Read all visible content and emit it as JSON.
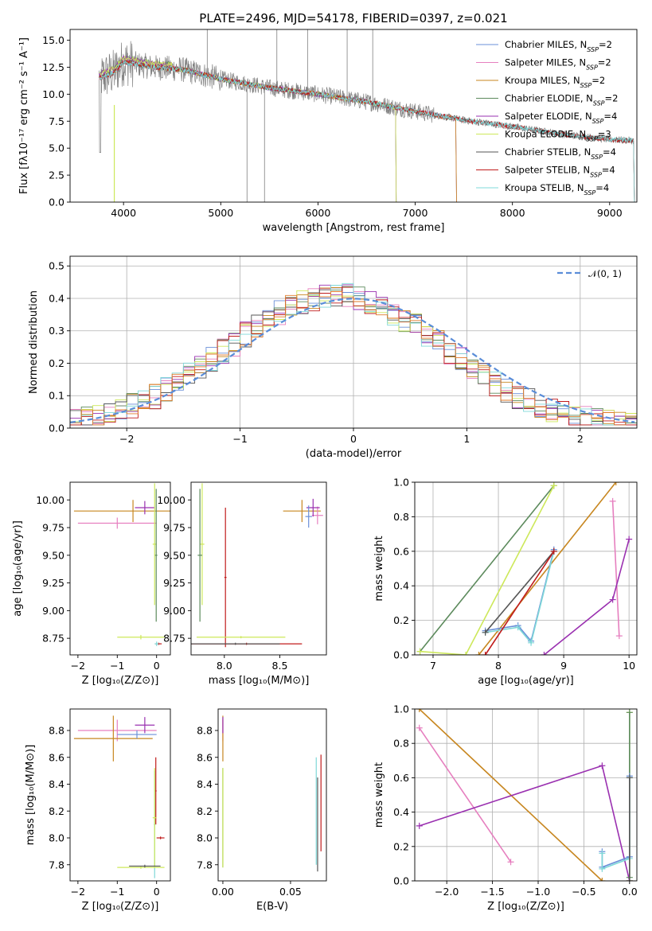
{
  "colors": {
    "Chabrier MILES": "#6a8fd8",
    "Salpeter MILES": "#e67fbf",
    "Kroupa MILES": "#c7861f",
    "Chabrier ELODIE": "#5c8a5c",
    "Salpeter ELODIE": "#9a30b0",
    "Kroupa ELODIE": "#cde85a",
    "Chabrier STELIB": "#555555",
    "Salpeter STELIB": "#c01c1c",
    "Kroupa STELIB": "#7fd8d8",
    "normal": "#5a8dd8",
    "orange": "#e07a2a",
    "spectrum_gray": "#808080"
  },
  "chart_data": [
    {
      "id": "spectrum",
      "type": "line",
      "title": "PLATE=2496, MJD=54178, FIBERID=0397, z=0.021",
      "xlabel": "wavelength [Angstrom, rest frame]",
      "ylabel": "Flux [fλ10⁻¹⁷ erg cm⁻² s⁻¹ A⁻¹]",
      "xlim": [
        3450,
        9280
      ],
      "ylim": [
        0,
        16
      ],
      "xticks": [
        "4000",
        "5000",
        "6000",
        "7000",
        "8000",
        "9000"
      ],
      "yticks": [
        "0.0",
        "2.5",
        "5.0",
        "7.5",
        "10.0",
        "12.5",
        "15.0"
      ],
      "grid": false,
      "legend_position": "top-right",
      "legend": [
        {
          "label": "Chabrier MILES, N",
          "sub": "SSP",
          "tail": "=2"
        },
        {
          "label": "Salpeter MILES, N",
          "sub": "SSP",
          "tail": "=2"
        },
        {
          "label": "Kroupa MILES, N",
          "sub": "SSP",
          "tail": "=2"
        },
        {
          "label": "Chabrier ELODIE, N",
          "sub": "SSP",
          "tail": "=2"
        },
        {
          "label": "Salpeter ELODIE, N",
          "sub": "SSP",
          "tail": "=4"
        },
        {
          "label": "Kroupa ELODIE, N",
          "sub": "SSP",
          "tail": "=3"
        },
        {
          "label": "Chabrier STELIB, N",
          "sub": "SSP",
          "tail": "=4"
        },
        {
          "label": "Salpeter STELIB, N",
          "sub": "SSP",
          "tail": "=4"
        },
        {
          "label": "Kroupa STELIB, N",
          "sub": "SSP",
          "tail": "=4"
        }
      ],
      "data_continuum": [
        [
          3750,
          11.5
        ],
        [
          3900,
          12.0
        ],
        [
          4000,
          13.0
        ],
        [
          4300,
          12.5
        ],
        [
          4600,
          12.3
        ],
        [
          5000,
          11.4
        ],
        [
          5500,
          10.6
        ],
        [
          6000,
          10.0
        ],
        [
          6500,
          9.3
        ],
        [
          7000,
          8.4
        ],
        [
          7500,
          7.6
        ],
        [
          8000,
          7.0
        ],
        [
          8500,
          6.3
        ],
        [
          9000,
          5.8
        ],
        [
          9250,
          5.7
        ]
      ],
      "model_ranges": {
        "MILES": [
          3750,
          7420
        ],
        "ELODIE": [
          3750,
          6800
        ],
        "STELIB": [
          3750,
          9250
        ]
      }
    },
    {
      "id": "residuals",
      "type": "step",
      "xlabel": "(data-model)/error",
      "ylabel": "Normed distribution",
      "xlim": [
        -2.5,
        2.5
      ],
      "ylim": [
        0,
        0.53
      ],
      "xticks": [
        "−2",
        "−1",
        "0",
        "1",
        "2"
      ],
      "yticks": [
        "0.0",
        "0.1",
        "0.2",
        "0.3",
        "0.4",
        "0.5"
      ],
      "grid": true,
      "legend_position": "top-right",
      "legend": [
        "𝒩(0, 1)"
      ],
      "bins": 50,
      "bin_width": 0.1
    },
    {
      "id": "age_vs_Z",
      "type": "errorbar",
      "xlabel": "Z [log₁₀(Z/Z⊙)]",
      "ylabel": "age  [log₁₀(age/yr)]",
      "xlim": [
        -2.2,
        0.35
      ],
      "ylim": [
        8.6,
        10.16
      ],
      "xticks": [
        "−2",
        "−1",
        "0"
      ],
      "yticks": [
        "8.75",
        "9.00",
        "9.25",
        "9.50",
        "9.75",
        "10.00"
      ],
      "points": [
        {
          "model": "Kroupa MILES",
          "x": -0.6,
          "xerr": 1.5,
          "y": 9.9,
          "yerr": 0.1
        },
        {
          "model": "Salpeter MILES",
          "x": -1.0,
          "xerr": 1.0,
          "y": 9.79,
          "yerr": 0.05
        },
        {
          "model": "Salpeter ELODIE",
          "x": -0.3,
          "xerr": 0.25,
          "y": 9.93,
          "yerr": 0.06
        },
        {
          "model": "Kroupa ELODIE",
          "x": -0.05,
          "xerr": 0.05,
          "y": 9.6,
          "yerr": 0.55
        },
        {
          "model": "Kroupa ELODIE",
          "x": -0.4,
          "xerr": 0.6,
          "y": 8.76,
          "yerr": 0.02
        },
        {
          "model": "Chabrier ELODIE",
          "x": -0.01,
          "xerr": 0.03,
          "y": 9.5,
          "yerr": 0.6
        },
        {
          "model": "Salpeter STELIB",
          "x": 0.05,
          "xerr": 0.08,
          "y": 8.7,
          "yerr": 0.01
        },
        {
          "model": "Kroupa STELIB",
          "x": 0.0,
          "xerr": 0.05,
          "y": 8.7,
          "yerr": 0.02
        }
      ]
    },
    {
      "id": "age_vs_mass",
      "type": "errorbar",
      "xlabel": "mass [log₁₀(M/M⊙)]",
      "ylabel": "",
      "xlim": [
        7.7,
        8.92
      ],
      "ylim": [
        8.6,
        10.16
      ],
      "xticks": [
        "8.0",
        "8.5"
      ],
      "yticks": [
        "8.75",
        "9.00",
        "9.25",
        "9.50",
        "9.75",
        "10.00"
      ],
      "points": [
        {
          "model": "Kroupa MILES",
          "x": 8.7,
          "xerr": 0.17,
          "y": 9.9,
          "yerr": 0.1
        },
        {
          "model": "Salpeter MILES",
          "x": 8.84,
          "xerr": 0.05,
          "y": 9.86,
          "yerr": 0.08
        },
        {
          "model": "Salpeter ELODIE",
          "x": 8.8,
          "xerr": 0.06,
          "y": 9.93,
          "yerr": 0.08
        },
        {
          "model": "Chabrier MILES",
          "x": 8.76,
          "xerr": 0.03,
          "y": 9.85,
          "yerr": 0.1
        },
        {
          "model": "Kroupa ELODIE",
          "x": 7.8,
          "xerr": 0.02,
          "y": 9.6,
          "yerr": 0.55
        },
        {
          "model": "Chabrier ELODIE",
          "x": 7.78,
          "xerr": 0.02,
          "y": 9.5,
          "yerr": 0.6
        },
        {
          "model": "Salpeter STELIB",
          "x": 8.01,
          "xerr": 0.01,
          "y": 9.3,
          "yerr": 0.63
        },
        {
          "model": "Kroupa ELODIE",
          "x": 8.15,
          "xerr": 0.4,
          "y": 8.76,
          "yerr": 0.01
        },
        {
          "model": "Salpeter STELIB",
          "x": 8.2,
          "xerr": 0.5,
          "y": 8.7,
          "yerr": 0.01
        },
        {
          "model": "Chabrier STELIB",
          "x": 8.1,
          "xerr": 0.4,
          "y": 8.7,
          "yerr": 0.01
        }
      ]
    },
    {
      "id": "weight_vs_age",
      "type": "line",
      "xlabel": "age  [log₁₀(age/yr)]",
      "ylabel": "mass weight",
      "xlim": [
        6.72,
        10.12
      ],
      "ylim": [
        0,
        1
      ],
      "xticks": [
        "7",
        "8",
        "9",
        "10"
      ],
      "yticks": [
        "0.0",
        "0.2",
        "0.4",
        "0.6",
        "0.8",
        "1.0"
      ],
      "grid": true,
      "series": [
        {
          "model": "Chabrier ELODIE",
          "x": [
            6.8,
            8.85
          ],
          "y": [
            0.02,
            0.98
          ]
        },
        {
          "model": "Kroupa ELODIE",
          "x": [
            6.8,
            7.5,
            8.85
          ],
          "y": [
            0.02,
            0.0,
            0.98
          ]
        },
        {
          "model": "Kroupa MILES",
          "x": [
            7.7,
            9.8
          ],
          "y": [
            0.0,
            1.0
          ]
        },
        {
          "model": "Chabrier MILES",
          "x": [
            7.8,
            8.3,
            8.5,
            8.85
          ],
          "y": [
            0.14,
            0.17,
            0.08,
            0.61
          ]
        },
        {
          "model": "Kroupa STELIB",
          "x": [
            7.8,
            8.3,
            8.5,
            8.85
          ],
          "y": [
            0.13,
            0.16,
            0.07,
            0.6
          ]
        },
        {
          "model": "Chabrier STELIB",
          "x": [
            7.8,
            8.85
          ],
          "y": [
            0.13,
            0.6
          ]
        },
        {
          "model": "Salpeter STELIB",
          "x": [
            7.8,
            8.85
          ],
          "y": [
            0.0,
            0.6
          ]
        },
        {
          "model": "Salpeter MILES",
          "x": [
            9.75,
            9.85
          ],
          "y": [
            0.89,
            0.11
          ]
        },
        {
          "model": "Salpeter ELODIE",
          "x": [
            8.7,
            9.75,
            10.0
          ],
          "y": [
            0.0,
            0.32,
            0.67
          ]
        }
      ]
    },
    {
      "id": "mass_vs_Z",
      "type": "errorbar",
      "xlabel": "Z [log₁₀(Z/Z⊙)]",
      "ylabel": "mass [log₁₀(M/M⊙)]",
      "xlim": [
        -2.2,
        0.35
      ],
      "ylim": [
        7.68,
        8.96
      ],
      "xticks": [
        "−2",
        "−1",
        "0"
      ],
      "yticks": [
        "7.8",
        "8.0",
        "8.2",
        "8.4",
        "8.6",
        "8.8"
      ],
      "points": [
        {
          "model": "Salpeter MILES",
          "x": -1.0,
          "xerr": 1.0,
          "y": 8.8,
          "yerr": 0.08
        },
        {
          "model": "Kroupa MILES",
          "x": -1.1,
          "xerr": 1.0,
          "y": 8.74,
          "yerr": 0.17
        },
        {
          "model": "Salpeter ELODIE",
          "x": -0.3,
          "xerr": 0.25,
          "y": 8.84,
          "yerr": 0.06
        },
        {
          "model": "Chabrier MILES",
          "x": -0.5,
          "xerr": 0.5,
          "y": 8.77,
          "yerr": 0.03
        },
        {
          "model": "Salpeter STELIB",
          "x": -0.02,
          "xerr": 0.02,
          "y": 8.35,
          "yerr": 0.25
        },
        {
          "model": "Kroupa STELIB",
          "x": -0.05,
          "xerr": 0.02,
          "y": 8.1,
          "yerr": 0.4
        },
        {
          "model": "Kroupa ELODIE",
          "x": -0.05,
          "xerr": 0.05,
          "y": 8.15,
          "yerr": 0.37
        },
        {
          "model": "Salpeter STELIB",
          "x": 0.1,
          "xerr": 0.1,
          "y": 8.0,
          "yerr": 0.01
        },
        {
          "model": "Kroupa ELODIE",
          "x": -0.4,
          "xerr": 0.6,
          "y": 7.78,
          "yerr": 0.01
        },
        {
          "model": "Chabrier STELIB",
          "x": -0.3,
          "xerr": 0.4,
          "y": 7.79,
          "yerr": 0.01
        }
      ]
    },
    {
      "id": "mass_vs_ebv",
      "type": "errorbar",
      "xlabel": "E(B-V)",
      "ylabel": "",
      "xlim": [
        -0.0035,
        0.0765
      ],
      "ylim": [
        7.68,
        8.96
      ],
      "xticks": [
        "0.00",
        "0.05"
      ],
      "yticks": [
        "7.8",
        "8.0",
        "8.2",
        "8.4",
        "8.6",
        "8.8"
      ],
      "points": [
        {
          "model": "Salpeter MILES",
          "x": 0.0,
          "xerr": 0.0,
          "y": 8.8,
          "yerr": 0.08
        },
        {
          "model": "Kroupa MILES",
          "x": 0.0,
          "xerr": 0.0,
          "y": 8.74,
          "yerr": 0.17
        },
        {
          "model": "Salpeter ELODIE",
          "x": 0.0,
          "xerr": 0.0,
          "y": 8.84,
          "yerr": 0.06
        },
        {
          "model": "Chabrier ELODIE",
          "x": 0.0,
          "xerr": 0.0,
          "y": 8.15,
          "yerr": 0.37
        },
        {
          "model": "Kroupa ELODIE",
          "x": 0.0,
          "xerr": 0.0,
          "y": 8.15,
          "yerr": 0.37
        },
        {
          "model": "Salpeter STELIB",
          "x": 0.0725,
          "xerr": 0.0,
          "y": 8.26,
          "yerr": 0.36
        },
        {
          "model": "Kroupa STELIB",
          "x": 0.069,
          "xerr": 0.0,
          "y": 8.2,
          "yerr": 0.4
        },
        {
          "model": "Chabrier STELIB",
          "x": 0.07,
          "xerr": 0.0,
          "y": 8.1,
          "yerr": 0.35
        }
      ]
    },
    {
      "id": "weight_vs_Z",
      "type": "line",
      "xlabel": "Z [log₁₀(Z/Z⊙)]",
      "ylabel": "mass weight",
      "xlim": [
        -2.35,
        0.08
      ],
      "ylim": [
        0,
        1
      ],
      "xticks": [
        "−2.0",
        "−1.5",
        "−1.0",
        "−0.5",
        "0.0"
      ],
      "yticks": [
        "0.0",
        "0.2",
        "0.4",
        "0.6",
        "0.8",
        "1.0"
      ],
      "grid": true,
      "series": [
        {
          "model": "Kroupa MILES",
          "x": [
            -2.3,
            -0.3
          ],
          "y": [
            1.0,
            0.0
          ]
        },
        {
          "model": "Salpeter MILES",
          "x": [
            -2.3,
            -1.3
          ],
          "y": [
            0.89,
            0.11
          ]
        },
        {
          "model": "Salpeter ELODIE",
          "x": [
            -2.3,
            -0.3,
            0.0
          ],
          "y": [
            0.32,
            0.67,
            0.0
          ]
        },
        {
          "model": "Kroupa ELODIE",
          "x": [
            0.0,
            0.0
          ],
          "y": [
            0.0,
            0.98
          ]
        },
        {
          "model": "Chabrier ELODIE",
          "x": [
            0.0,
            0.0
          ],
          "y": [
            0.02,
            0.98
          ]
        },
        {
          "model": "Chabrier MILES",
          "x": [
            -0.3,
            -0.3,
            0.0,
            0.0
          ],
          "y": [
            0.17,
            0.08,
            0.14,
            0.61
          ]
        },
        {
          "model": "Kroupa STELIB",
          "x": [
            -0.3,
            -0.3,
            0.0,
            0.0
          ],
          "y": [
            0.16,
            0.07,
            0.13,
            0.6
          ]
        },
        {
          "model": "Chabrier STELIB",
          "x": [
            0.0,
            0.0
          ],
          "y": [
            0.0,
            0.6
          ]
        }
      ]
    }
  ]
}
